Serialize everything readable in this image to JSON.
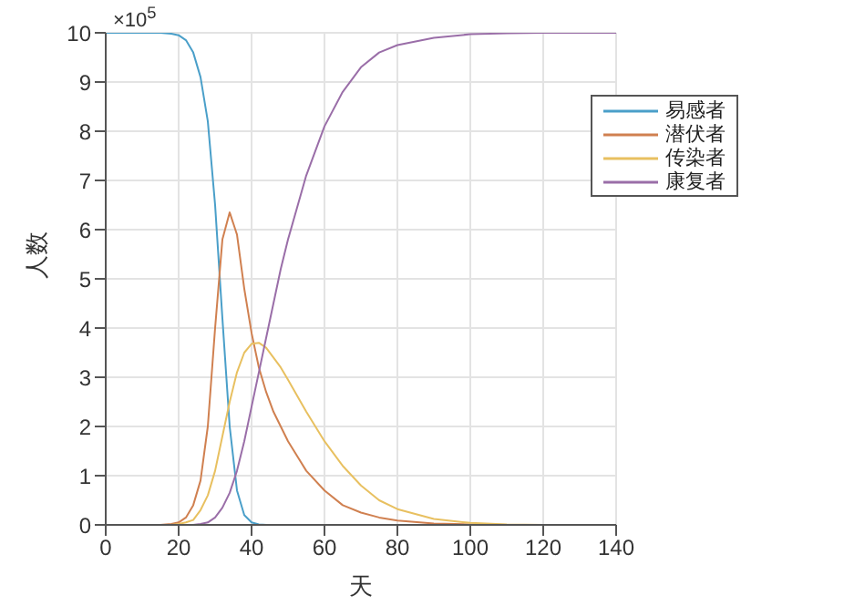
{
  "chart_data": {
    "type": "line",
    "xlabel": "天",
    "ylabel": "人数",
    "annotations": [
      "×10$^{5}$"
    ],
    "x": [
      0,
      10,
      15,
      18,
      20,
      22,
      24,
      26,
      28,
      30,
      32,
      34,
      36,
      38,
      40,
      42,
      44,
      46,
      48,
      50,
      55,
      60,
      65,
      70,
      75,
      80,
      90,
      100,
      110,
      120,
      140
    ],
    "series": [
      {
        "name": "易感者",
        "color": "#4a9fc9",
        "values": [
          10,
          10,
          10,
          9.98,
          9.95,
          9.85,
          9.6,
          9.1,
          8.2,
          6.5,
          4.2,
          2.0,
          0.7,
          0.2,
          0.05,
          0.01,
          0,
          0,
          null,
          null,
          null,
          null,
          null,
          null,
          null,
          null,
          null,
          null,
          null,
          null,
          null
        ]
      },
      {
        "name": "潜伏者",
        "color": "#d08050",
        "values": [
          0,
          0,
          0,
          0.02,
          0.05,
          0.15,
          0.4,
          0.9,
          2.0,
          4.0,
          5.8,
          6.35,
          5.9,
          4.8,
          3.9,
          3.2,
          2.7,
          2.3,
          2.0,
          1.7,
          1.1,
          0.7,
          0.4,
          0.25,
          0.15,
          0.09,
          0.03,
          0.01,
          0,
          0,
          0
        ]
      },
      {
        "name": "传染者",
        "color": "#e8c060",
        "values": [
          0,
          0,
          0,
          0,
          0.02,
          0.05,
          0.1,
          0.3,
          0.6,
          1.1,
          1.8,
          2.5,
          3.1,
          3.5,
          3.68,
          3.7,
          3.6,
          3.4,
          3.2,
          2.95,
          2.3,
          1.7,
          1.2,
          0.8,
          0.5,
          0.32,
          0.12,
          0.04,
          0.01,
          0,
          0
        ]
      },
      {
        "name": "康复者",
        "color": "#9a6ea8",
        "values": [
          null,
          null,
          null,
          null,
          null,
          0,
          0,
          0.02,
          0.05,
          0.15,
          0.35,
          0.65,
          1.1,
          1.7,
          2.4,
          3.1,
          3.8,
          4.5,
          5.2,
          5.8,
          7.1,
          8.1,
          8.8,
          9.3,
          9.6,
          9.75,
          9.9,
          9.97,
          9.99,
          10,
          10
        ]
      }
    ],
    "xlim": [
      0,
      140
    ],
    "xticks": [
      0,
      20,
      40,
      60,
      80,
      100,
      120,
      140
    ],
    "ylim": [
      0,
      10
    ],
    "yticks": [
      0,
      1,
      2,
      3,
      4,
      5,
      6,
      7,
      8,
      9,
      10
    ],
    "grid": true,
    "legend": "top right",
    "marker": "none",
    "line_style": "solid"
  }
}
